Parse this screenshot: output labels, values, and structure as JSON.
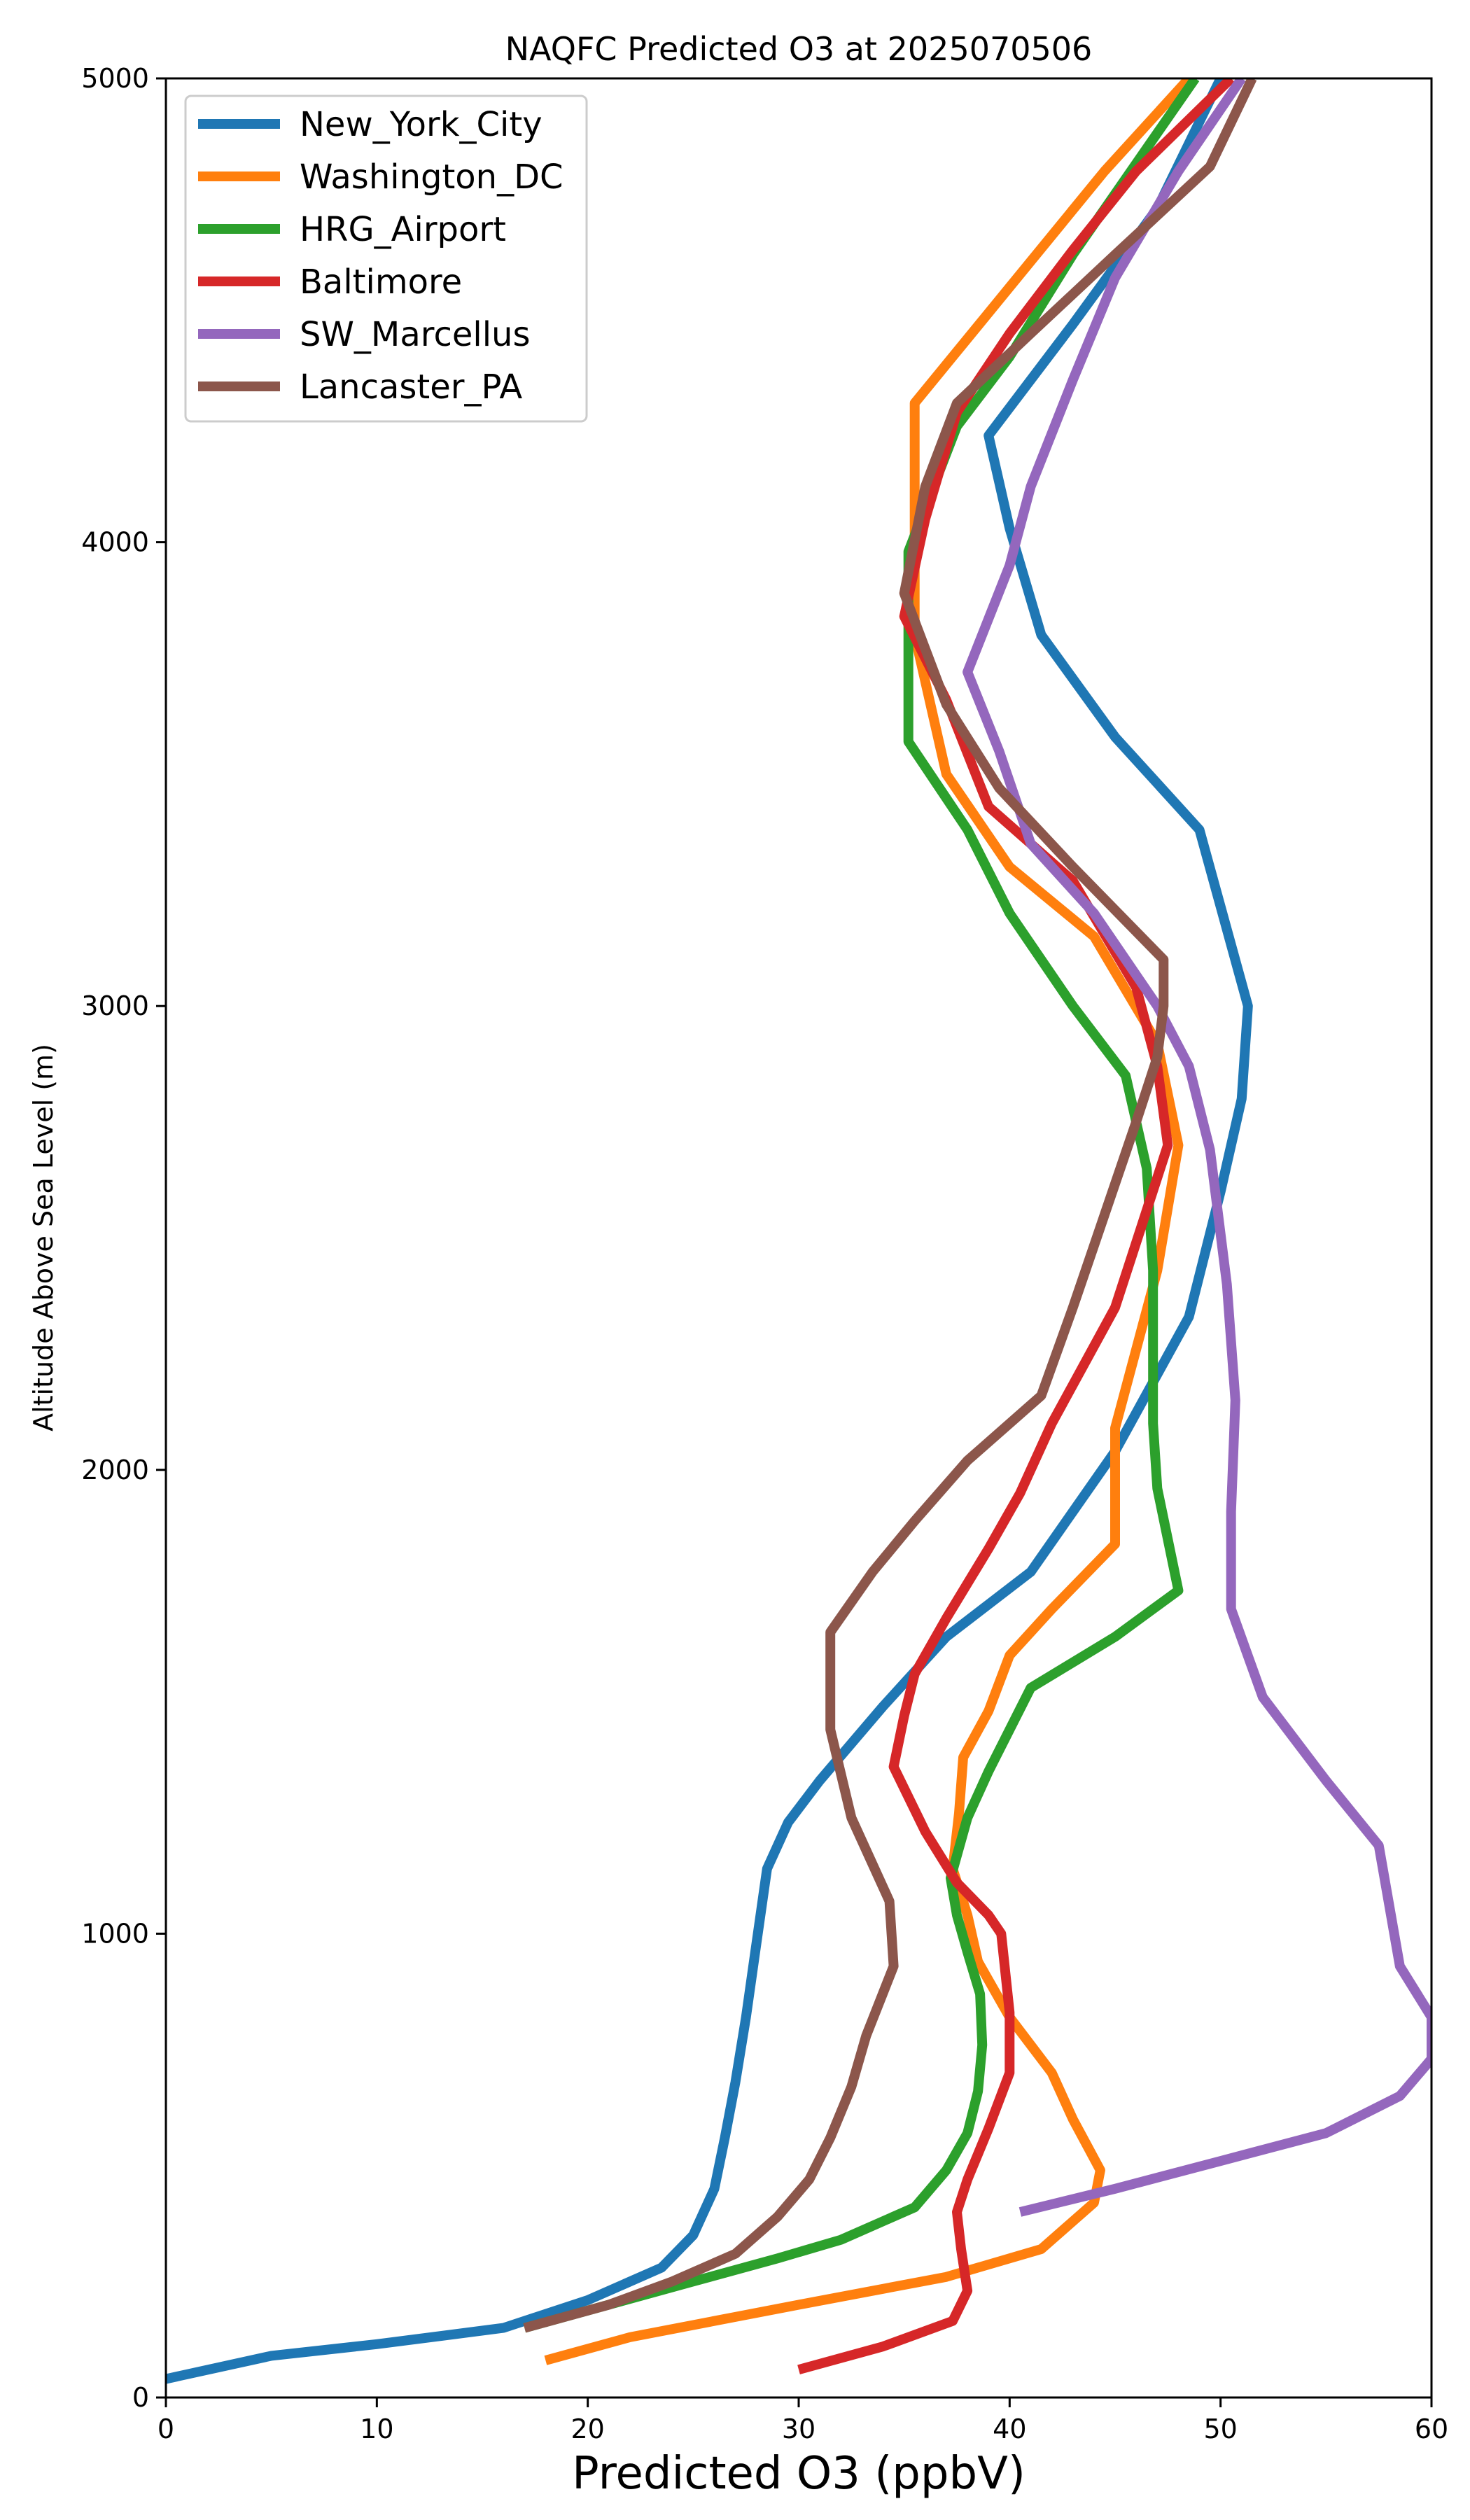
{
  "chart_data": {
    "type": "line",
    "title": "NAQFC Predicted O3 at 2025070506",
    "xlabel": "Predicted O3 (ppbV)",
    "ylabel": "Altitude Above Sea Level (m)",
    "xlim": [
      0,
      60
    ],
    "ylim": [
      0,
      5000
    ],
    "xticks": [
      "0",
      "10",
      "20",
      "30",
      "40",
      "50",
      "60"
    ],
    "yticks": [
      "0",
      "1000",
      "2000",
      "3000",
      "4000",
      "5000"
    ],
    "grid": false,
    "legend_position": "top-left",
    "series": [
      {
        "name": "New_York_City",
        "color": "#1f77b4",
        "points": [
          [
            0,
            40
          ],
          [
            5,
            90
          ],
          [
            10,
            115
          ],
          [
            16,
            150
          ],
          [
            20,
            210
          ],
          [
            23.5,
            280
          ],
          [
            25,
            350
          ],
          [
            26,
            450
          ],
          [
            26.5,
            560
          ],
          [
            27,
            680
          ],
          [
            27.5,
            820
          ],
          [
            28,
            980
          ],
          [
            28.5,
            1140
          ],
          [
            29.5,
            1240
          ],
          [
            31,
            1330
          ],
          [
            34,
            1490
          ],
          [
            37,
            1640
          ],
          [
            41,
            1780
          ],
          [
            45,
            2040
          ],
          [
            48.5,
            2330
          ],
          [
            50,
            2600
          ],
          [
            51,
            2800
          ],
          [
            51.3,
            3000
          ],
          [
            49,
            3380
          ],
          [
            45,
            3580
          ],
          [
            41.5,
            3800
          ],
          [
            40,
            4030
          ],
          [
            39,
            4230
          ],
          [
            43,
            4470
          ],
          [
            47,
            4720
          ],
          [
            50,
            5000
          ]
        ]
      },
      {
        "name": "Washington_DC",
        "color": "#ff7f0e",
        "points": [
          [
            18,
            80
          ],
          [
            22,
            130
          ],
          [
            30,
            200
          ],
          [
            37,
            260
          ],
          [
            41.5,
            320
          ],
          [
            44,
            420
          ],
          [
            44.3,
            490
          ],
          [
            43,
            600
          ],
          [
            42,
            700
          ],
          [
            40,
            820
          ],
          [
            38.5,
            940
          ],
          [
            38,
            1040
          ],
          [
            37.3,
            1140
          ],
          [
            37.6,
            1260
          ],
          [
            37.8,
            1380
          ],
          [
            39,
            1480
          ],
          [
            40,
            1600
          ],
          [
            42,
            1700
          ],
          [
            45,
            1840
          ],
          [
            45,
            2000
          ],
          [
            45,
            2090
          ],
          [
            47,
            2430
          ],
          [
            48,
            2700
          ],
          [
            47,
            2920
          ],
          [
            44,
            3150
          ],
          [
            40,
            3300
          ],
          [
            37,
            3500
          ],
          [
            35.5,
            3800
          ],
          [
            35.5,
            4000
          ],
          [
            35.5,
            4300
          ],
          [
            40,
            4550
          ],
          [
            44.5,
            4800
          ],
          [
            48.5,
            5000
          ]
        ]
      },
      {
        "name": "HRG_Airport",
        "color": "#2ca02c",
        "points": [
          [
            17,
            150
          ],
          [
            25,
            250
          ],
          [
            29,
            300
          ],
          [
            32,
            340
          ],
          [
            35.5,
            410
          ],
          [
            37,
            490
          ],
          [
            38,
            570
          ],
          [
            38.5,
            660
          ],
          [
            38.7,
            760
          ],
          [
            38.6,
            870
          ],
          [
            38,
            960
          ],
          [
            37.5,
            1040
          ],
          [
            37.2,
            1120
          ],
          [
            38,
            1250
          ],
          [
            39,
            1350
          ],
          [
            41,
            1530
          ],
          [
            45,
            1640
          ],
          [
            48,
            1740
          ],
          [
            47,
            1960
          ],
          [
            46.8,
            2100
          ],
          [
            46.8,
            2430
          ],
          [
            46.5,
            2650
          ],
          [
            45.5,
            2850
          ],
          [
            43,
            3000
          ],
          [
            40,
            3200
          ],
          [
            38,
            3380
          ],
          [
            35.2,
            3570
          ],
          [
            35.2,
            3800
          ],
          [
            35.2,
            3980
          ],
          [
            37.5,
            4250
          ],
          [
            40,
            4400
          ],
          [
            43,
            4620
          ],
          [
            48.8,
            5000
          ]
        ]
      },
      {
        "name": "Baltimore",
        "color": "#d62728",
        "points": [
          [
            30,
            60
          ],
          [
            34,
            110
          ],
          [
            37.3,
            165
          ],
          [
            38,
            230
          ],
          [
            37.7,
            320
          ],
          [
            37.5,
            400
          ],
          [
            38,
            470
          ],
          [
            39,
            580
          ],
          [
            40,
            700
          ],
          [
            40,
            830
          ],
          [
            39.6,
            1000
          ],
          [
            39,
            1040
          ],
          [
            37.5,
            1110
          ],
          [
            36,
            1220
          ],
          [
            34.5,
            1360
          ],
          [
            35,
            1470
          ],
          [
            35.5,
            1560
          ],
          [
            37,
            1680
          ],
          [
            39,
            1830
          ],
          [
            40.5,
            1950
          ],
          [
            42,
            2100
          ],
          [
            45,
            2350
          ],
          [
            47.5,
            2700
          ],
          [
            47,
            2870
          ],
          [
            46,
            3040
          ],
          [
            43,
            3270
          ],
          [
            39,
            3430
          ],
          [
            37,
            3660
          ],
          [
            35,
            3840
          ],
          [
            36,
            4050
          ],
          [
            37.5,
            4280
          ],
          [
            40,
            4450
          ],
          [
            43,
            4630
          ],
          [
            46,
            4800
          ],
          [
            50.5,
            5000
          ]
        ]
      },
      {
        "name": "SW_Marcellus",
        "color": "#9467bd",
        "points": [
          [
            40.5,
            400
          ],
          [
            45,
            450
          ],
          [
            50,
            510
          ],
          [
            55,
            570
          ],
          [
            58.5,
            650
          ],
          [
            60,
            730
          ],
          [
            60,
            820
          ],
          [
            58.5,
            930
          ],
          [
            57.5,
            1190
          ],
          [
            55,
            1330
          ],
          [
            52,
            1510
          ],
          [
            50.5,
            1700
          ],
          [
            50.5,
            1910
          ],
          [
            50.7,
            2150
          ],
          [
            50.3,
            2400
          ],
          [
            49.5,
            2690
          ],
          [
            48.5,
            2870
          ],
          [
            47,
            3000
          ],
          [
            44,
            3200
          ],
          [
            41,
            3350
          ],
          [
            39.5,
            3550
          ],
          [
            38,
            3720
          ],
          [
            40,
            3950
          ],
          [
            41,
            4120
          ],
          [
            43,
            4350
          ],
          [
            45,
            4570
          ],
          [
            48,
            4800
          ],
          [
            51,
            5000
          ]
        ]
      },
      {
        "name": "Lancaster_PA",
        "color": "#8c564b",
        "points": [
          [
            17,
            150
          ],
          [
            21,
            200
          ],
          [
            24,
            250
          ],
          [
            27,
            310
          ],
          [
            29,
            390
          ],
          [
            30.5,
            470
          ],
          [
            31.5,
            560
          ],
          [
            32.5,
            670
          ],
          [
            33.2,
            780
          ],
          [
            34.5,
            930
          ],
          [
            34.3,
            1070
          ],
          [
            32.5,
            1250
          ],
          [
            31.5,
            1440
          ],
          [
            31.5,
            1650
          ],
          [
            33.5,
            1780
          ],
          [
            35.5,
            1890
          ],
          [
            38,
            2020
          ],
          [
            41.5,
            2160
          ],
          [
            43,
            2350
          ],
          [
            44.5,
            2550
          ],
          [
            46,
            2750
          ],
          [
            47,
            2890
          ],
          [
            47.3,
            3000
          ],
          [
            47.3,
            3100
          ],
          [
            43,
            3300
          ],
          [
            39.5,
            3470
          ],
          [
            37,
            3650
          ],
          [
            35,
            3890
          ],
          [
            36,
            4120
          ],
          [
            37.5,
            4300
          ],
          [
            41,
            4450
          ],
          [
            45,
            4620
          ],
          [
            49.5,
            4810
          ],
          [
            51.5,
            5000
          ]
        ]
      }
    ]
  }
}
